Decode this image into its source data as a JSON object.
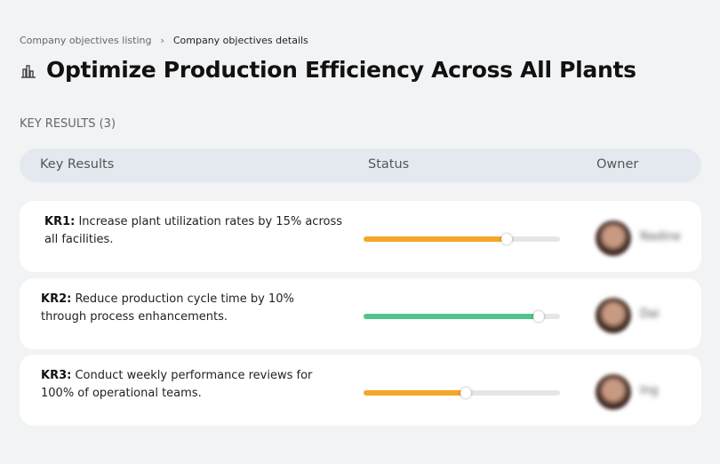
{
  "breadcrumb": [
    "Company objectives listing",
    "Company objectives details"
  ],
  "title": "Optimize Production Efficiency Across All Plants",
  "section_label": "KEY RESULTS (3)",
  "table": {
    "headers": [
      "Key Results",
      "Status",
      "Owner"
    ],
    "rows": [
      {
        "id": "KR1:",
        "text": "Increase plant utilization rates by 15% across all facilities.",
        "progress": 73,
        "color": "#f5a62b",
        "owner": "Nadine"
      },
      {
        "id": "KR2:",
        "text": "Reduce production cycle time by 10% through process enhancements.",
        "progress": 89,
        "color": "#52c48a",
        "owner": "Dai"
      },
      {
        "id": "KR3:",
        "text": "Conduct weekly performance reviews for 100% of operational teams.",
        "progress": 52,
        "color": "#f5a62b",
        "owner": "Ing"
      }
    ]
  }
}
